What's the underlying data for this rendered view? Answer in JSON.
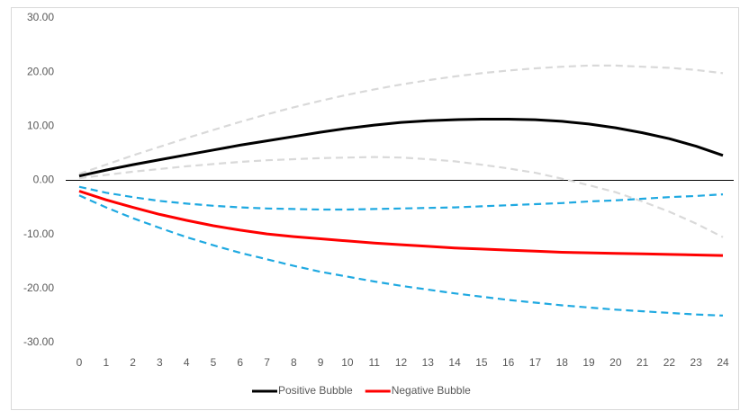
{
  "chart_data": {
    "type": "line",
    "x": [
      0,
      1,
      2,
      3,
      4,
      5,
      6,
      7,
      8,
      9,
      10,
      11,
      12,
      13,
      14,
      15,
      16,
      17,
      18,
      19,
      20,
      21,
      22,
      23,
      24
    ],
    "xlim": [
      0,
      24
    ],
    "ylim": [
      -30,
      30
    ],
    "yticks": [
      {
        "value": -30,
        "label": "-30.00"
      },
      {
        "value": -20,
        "label": "-20.00"
      },
      {
        "value": -10,
        "label": "-10.00"
      },
      {
        "value": 0,
        "label": "0.00"
      },
      {
        "value": 10,
        "label": "10.00"
      },
      {
        "value": 20,
        "label": "20.00"
      },
      {
        "value": 30,
        "label": "30.00"
      }
    ],
    "legend": "bottom",
    "series": [
      {
        "color": "#d9d9d9",
        "dashed": true,
        "values": [
          1.2,
          2.9,
          4.6,
          6.2,
          7.8,
          9.3,
          10.8,
          12.2,
          13.5,
          14.7,
          15.8,
          16.8,
          17.7,
          18.5,
          19.2,
          19.8,
          20.3,
          20.7,
          21.0,
          21.2,
          21.2,
          21.0,
          20.8,
          20.4,
          19.8
        ]
      },
      {
        "color": "#d9d9d9",
        "dashed": true,
        "values": [
          0.4,
          1.0,
          1.6,
          2.1,
          2.6,
          3.0,
          3.4,
          3.7,
          3.9,
          4.1,
          4.2,
          4.3,
          4.2,
          3.9,
          3.5,
          2.9,
          2.2,
          1.4,
          0.3,
          -0.9,
          -2.2,
          -3.9,
          -5.8,
          -8.0,
          -10.5
        ]
      },
      {
        "color": "#1fa9e1",
        "dashed": true,
        "values": [
          -1.2,
          -2.3,
          -3.1,
          -3.8,
          -4.3,
          -4.7,
          -5.0,
          -5.2,
          -5.3,
          -5.4,
          -5.4,
          -5.3,
          -5.2,
          -5.1,
          -5.0,
          -4.8,
          -4.6,
          -4.4,
          -4.2,
          -3.9,
          -3.7,
          -3.4,
          -3.1,
          -2.9,
          -2.6
        ]
      },
      {
        "color": "#1fa9e1",
        "dashed": true,
        "values": [
          -2.8,
          -5.0,
          -7.0,
          -8.8,
          -10.5,
          -12.0,
          -13.4,
          -14.6,
          -15.8,
          -16.9,
          -17.8,
          -18.7,
          -19.5,
          -20.2,
          -20.9,
          -21.5,
          -22.1,
          -22.6,
          -23.1,
          -23.5,
          -23.9,
          -24.2,
          -24.5,
          -24.8,
          -25.0
        ]
      },
      {
        "name": "Positive Bubble",
        "color": "#000000",
        "dashed": false,
        "values": [
          0.8,
          1.9,
          2.9,
          3.8,
          4.7,
          5.6,
          6.5,
          7.3,
          8.1,
          8.9,
          9.6,
          10.2,
          10.7,
          11.0,
          11.2,
          11.3,
          11.3,
          11.2,
          10.9,
          10.4,
          9.7,
          8.8,
          7.7,
          6.3,
          4.6
        ]
      },
      {
        "name": "Negative Bubble",
        "color": "#ff0000",
        "dashed": false,
        "values": [
          -2.0,
          -3.6,
          -5.0,
          -6.3,
          -7.4,
          -8.4,
          -9.2,
          -9.9,
          -10.4,
          -10.8,
          -11.2,
          -11.6,
          -11.9,
          -12.2,
          -12.5,
          -12.7,
          -12.9,
          -13.1,
          -13.3,
          -13.4,
          -13.5,
          -13.6,
          -13.7,
          -13.8,
          -13.9
        ]
      }
    ]
  }
}
